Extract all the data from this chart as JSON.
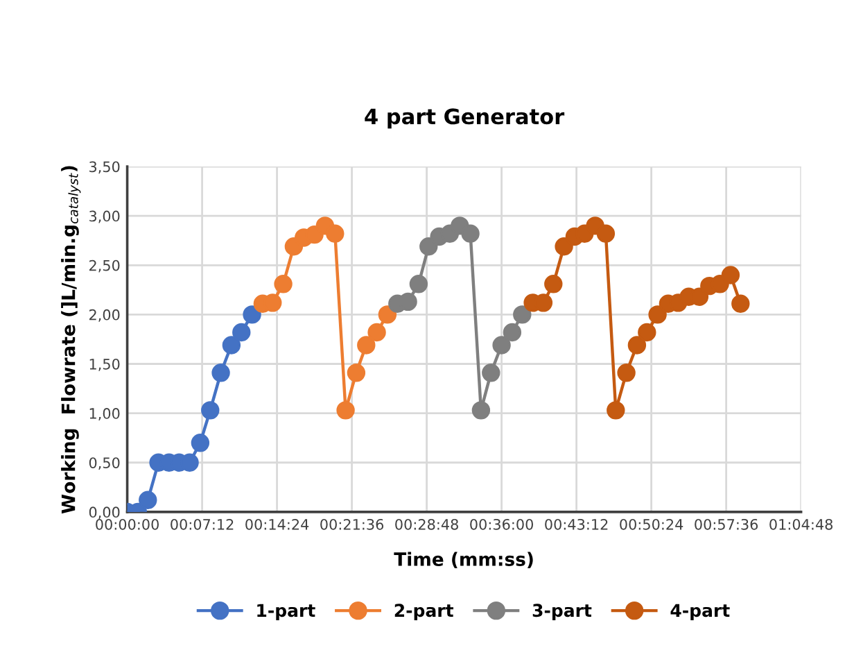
{
  "chart_data": {
    "type": "line",
    "title": "4 part Generator",
    "xlabel": "Time (mm:ss)",
    "ylabel": "Working  Flowrate (]L/min.g$_{catalyst}$)",
    "xlim": [
      0,
      1.08
    ],
    "ylim": [
      0,
      3.5
    ],
    "xticks": [
      {
        "value": 0,
        "label": "00:00:00"
      },
      {
        "value": 0.12,
        "label": "00:07:12"
      },
      {
        "value": 0.24,
        "label": "00:14:24"
      },
      {
        "value": 0.36,
        "label": "00:21:36"
      },
      {
        "value": 0.48,
        "label": "00:28:48"
      },
      {
        "value": 0.6,
        "label": "00:36:00"
      },
      {
        "value": 0.72,
        "label": "00:43:12"
      },
      {
        "value": 0.84,
        "label": "00:50:24"
      },
      {
        "value": 0.96,
        "label": "00:57:36"
      },
      {
        "value": 1.08,
        "label": "01:04:48"
      }
    ],
    "yticks": [
      {
        "value": 0,
        "label": "0,00"
      },
      {
        "value": 0.5,
        "label": "0,50"
      },
      {
        "value": 1,
        "label": "1,00"
      },
      {
        "value": 1.5,
        "label": "1,50"
      },
      {
        "value": 2,
        "label": "2,00"
      },
      {
        "value": 2.5,
        "label": "2,50"
      },
      {
        "value": 3,
        "label": "3,00"
      },
      {
        "value": 3.5,
        "label": "3,50"
      }
    ],
    "grid": true,
    "legend": "bottom",
    "marker": "circle",
    "line_style": "solid",
    "series": [
      {
        "name": "1-part",
        "color": "#4472c4",
        "x": [
          0,
          0.017,
          0.033,
          0.05,
          0.067,
          0.083,
          0.1,
          0.117,
          0.133,
          0.15,
          0.167,
          0.183,
          0.2
        ],
        "values": [
          0,
          0,
          0.12,
          0.5,
          0.5,
          0.5,
          0.5,
          0.7,
          1.03,
          1.41,
          1.69,
          1.82,
          2.0
        ]
      },
      {
        "name": "2-part",
        "color": "#ed7d31",
        "x": [
          0.217,
          0.233,
          0.25,
          0.267,
          0.283,
          0.3,
          0.317,
          0.333,
          0.35,
          0.367,
          0.383,
          0.4,
          0.417
        ],
        "values": [
          2.11,
          2.12,
          2.31,
          2.69,
          2.78,
          2.81,
          2.9,
          2.82,
          1.03,
          1.41,
          1.69,
          1.82,
          2.0
        ]
      },
      {
        "name": "3-part",
        "color": "#7f7f7f",
        "x": [
          0.433,
          0.45,
          0.467,
          0.483,
          0.5,
          0.517,
          0.533,
          0.55,
          0.567,
          0.583,
          0.6,
          0.617,
          0.633
        ],
        "values": [
          2.11,
          2.13,
          2.31,
          2.69,
          2.79,
          2.82,
          2.9,
          2.82,
          1.03,
          1.41,
          1.69,
          1.82,
          2.0
        ]
      },
      {
        "name": "4-part",
        "color": "#c55a11",
        "x": [
          0.65,
          0.667,
          0.683,
          0.7,
          0.717,
          0.733,
          0.75,
          0.767,
          0.783,
          0.8,
          0.817,
          0.833,
          0.85,
          0.867,
          0.883,
          0.9,
          0.917,
          0.933,
          0.95,
          0.967,
          0.983
        ],
        "values": [
          2.12,
          2.12,
          2.31,
          2.69,
          2.79,
          2.82,
          2.9,
          2.82,
          1.03,
          1.41,
          1.69,
          1.82,
          2.0,
          2.11,
          2.12,
          2.18,
          2.18,
          2.29,
          2.31,
          2.4,
          2.11
        ]
      }
    ]
  }
}
